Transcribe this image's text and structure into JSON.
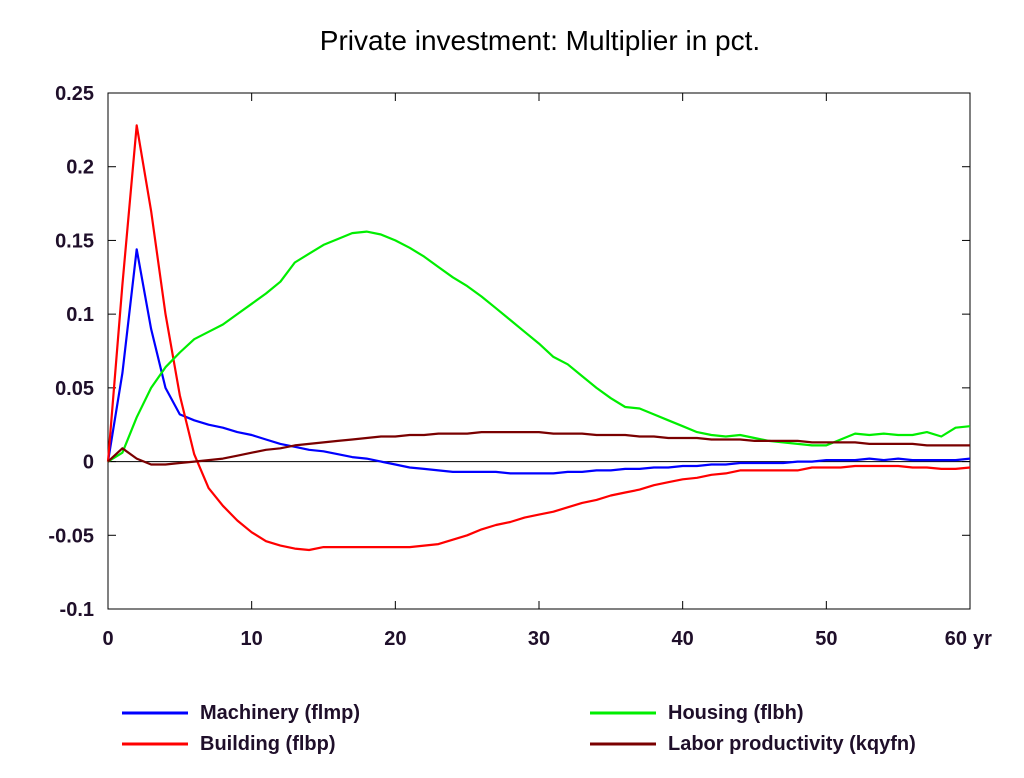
{
  "chart_data": {
    "type": "line",
    "title": "Private investment: Multiplier in pct.",
    "xlabel": "",
    "ylabel": "",
    "x_unit_label": "yr",
    "xlim": [
      0,
      60
    ],
    "ylim": [
      -0.1,
      0.25
    ],
    "x_ticks": [
      "0",
      "10",
      "20",
      "30",
      "40",
      "50",
      "60"
    ],
    "y_ticks": [
      "0.25",
      "0.2",
      "0.15",
      "0.1",
      "0.05",
      "0",
      "-0.05",
      "-0.1"
    ],
    "x_tick_values": [
      0,
      10,
      20,
      30,
      40,
      50,
      60
    ],
    "y_tick_values": [
      0.25,
      0.2,
      0.15,
      0.1,
      0.05,
      0,
      -0.05,
      -0.1
    ],
    "grid": false,
    "zero_line": true,
    "legend_position": "bottom",
    "series": [
      {
        "name": "Machinery (flmp)",
        "color": "#0000ff",
        "x": [
          0,
          1,
          2,
          3,
          4,
          5,
          6,
          7,
          8,
          9,
          10,
          11,
          12,
          13,
          14,
          15,
          16,
          17,
          18,
          19,
          20,
          21,
          22,
          23,
          24,
          25,
          26,
          27,
          28,
          29,
          30,
          31,
          32,
          33,
          34,
          35,
          36,
          37,
          38,
          39,
          40,
          41,
          42,
          43,
          44,
          45,
          46,
          47,
          48,
          49,
          50,
          51,
          52,
          53,
          54,
          55,
          56,
          57,
          58,
          59,
          60
        ],
        "y": [
          0,
          0.06,
          0.144,
          0.09,
          0.05,
          0.032,
          0.028,
          0.025,
          0.023,
          0.02,
          0.018,
          0.015,
          0.012,
          0.01,
          0.008,
          0.007,
          0.005,
          0.003,
          0.002,
          0.0,
          -0.002,
          -0.004,
          -0.005,
          -0.006,
          -0.007,
          -0.007,
          -0.007,
          -0.007,
          -0.008,
          -0.008,
          -0.008,
          -0.008,
          -0.007,
          -0.007,
          -0.006,
          -0.006,
          -0.005,
          -0.005,
          -0.004,
          -0.004,
          -0.003,
          -0.003,
          -0.002,
          -0.002,
          -0.001,
          -0.001,
          -0.001,
          -0.001,
          0.0,
          0.0,
          0.001,
          0.001,
          0.001,
          0.002,
          0.001,
          0.002,
          0.001,
          0.001,
          0.001,
          0.001,
          0.002
        ]
      },
      {
        "name": "Building (flbp)",
        "color": "#ff0000",
        "x": [
          0,
          1,
          2,
          3,
          4,
          5,
          6,
          7,
          8,
          9,
          10,
          11,
          12,
          13,
          14,
          15,
          16,
          17,
          18,
          19,
          20,
          21,
          22,
          23,
          24,
          25,
          26,
          27,
          28,
          29,
          30,
          31,
          32,
          33,
          34,
          35,
          36,
          37,
          38,
          39,
          40,
          41,
          42,
          43,
          44,
          45,
          46,
          47,
          48,
          49,
          50,
          51,
          52,
          53,
          54,
          55,
          56,
          57,
          58,
          59,
          60
        ],
        "y": [
          0,
          0.12,
          0.228,
          0.17,
          0.1,
          0.045,
          0.005,
          -0.018,
          -0.03,
          -0.04,
          -0.048,
          -0.054,
          -0.057,
          -0.059,
          -0.06,
          -0.058,
          -0.058,
          -0.058,
          -0.058,
          -0.058,
          -0.058,
          -0.058,
          -0.057,
          -0.056,
          -0.053,
          -0.05,
          -0.046,
          -0.043,
          -0.041,
          -0.038,
          -0.036,
          -0.034,
          -0.031,
          -0.028,
          -0.026,
          -0.023,
          -0.021,
          -0.019,
          -0.016,
          -0.014,
          -0.012,
          -0.011,
          -0.009,
          -0.008,
          -0.006,
          -0.006,
          -0.006,
          -0.006,
          -0.006,
          -0.004,
          -0.004,
          -0.004,
          -0.003,
          -0.003,
          -0.003,
          -0.003,
          -0.004,
          -0.004,
          -0.005,
          -0.005,
          -0.004
        ]
      },
      {
        "name": "Housing (flbh)",
        "color": "#00ee00",
        "x": [
          0,
          1,
          2,
          3,
          4,
          5,
          6,
          7,
          8,
          9,
          10,
          11,
          12,
          13,
          14,
          15,
          16,
          17,
          18,
          19,
          20,
          21,
          22,
          23,
          24,
          25,
          26,
          27,
          28,
          29,
          30,
          31,
          32,
          33,
          34,
          35,
          36,
          37,
          38,
          39,
          40,
          41,
          42,
          43,
          44,
          45,
          46,
          47,
          48,
          49,
          50,
          51,
          52,
          53,
          54,
          55,
          56,
          57,
          58,
          59,
          60
        ],
        "y": [
          0,
          0.006,
          0.03,
          0.05,
          0.064,
          0.074,
          0.083,
          0.088,
          0.093,
          0.1,
          0.107,
          0.114,
          0.122,
          0.135,
          0.141,
          0.147,
          0.151,
          0.155,
          0.156,
          0.154,
          0.15,
          0.145,
          0.139,
          0.132,
          0.125,
          0.119,
          0.112,
          0.104,
          0.096,
          0.088,
          0.08,
          0.071,
          0.066,
          0.058,
          0.05,
          0.043,
          0.037,
          0.036,
          0.032,
          0.028,
          0.024,
          0.02,
          0.018,
          0.017,
          0.018,
          0.016,
          0.014,
          0.013,
          0.012,
          0.011,
          0.011,
          0.015,
          0.019,
          0.018,
          0.019,
          0.018,
          0.018,
          0.02,
          0.017,
          0.023,
          0.024
        ]
      },
      {
        "name": "Labor productivity (kqyfn)",
        "color": "#7a0000",
        "x": [
          0,
          1,
          2,
          3,
          4,
          5,
          6,
          7,
          8,
          9,
          10,
          11,
          12,
          13,
          14,
          15,
          16,
          17,
          18,
          19,
          20,
          21,
          22,
          23,
          24,
          25,
          26,
          27,
          28,
          29,
          30,
          31,
          32,
          33,
          34,
          35,
          36,
          37,
          38,
          39,
          40,
          41,
          42,
          43,
          44,
          45,
          46,
          47,
          48,
          49,
          50,
          51,
          52,
          53,
          54,
          55,
          56,
          57,
          58,
          59,
          60
        ],
        "y": [
          0,
          0.009,
          0.002,
          -0.002,
          -0.002,
          -0.001,
          0.0,
          0.001,
          0.002,
          0.004,
          0.006,
          0.008,
          0.009,
          0.011,
          0.012,
          0.013,
          0.014,
          0.015,
          0.016,
          0.017,
          0.017,
          0.018,
          0.018,
          0.019,
          0.019,
          0.019,
          0.02,
          0.02,
          0.02,
          0.02,
          0.02,
          0.019,
          0.019,
          0.019,
          0.018,
          0.018,
          0.018,
          0.017,
          0.017,
          0.016,
          0.016,
          0.016,
          0.015,
          0.015,
          0.015,
          0.014,
          0.014,
          0.014,
          0.014,
          0.013,
          0.013,
          0.013,
          0.013,
          0.012,
          0.012,
          0.012,
          0.012,
          0.011,
          0.011,
          0.011,
          0.011
        ]
      }
    ]
  }
}
